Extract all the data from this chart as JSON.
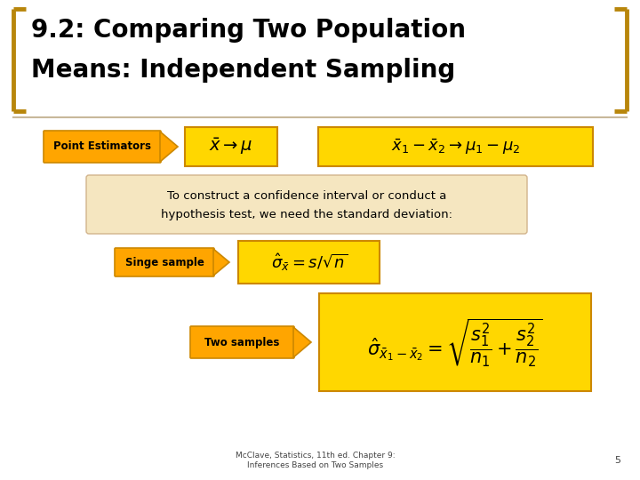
{
  "title_line1": "9.2: Comparing Two Population",
  "title_line2": "Means: Independent Sampling",
  "title_fontsize": 20,
  "bg_color": "#ffffff",
  "title_color": "#000000",
  "arrow_color": "#FFA500",
  "arrow_edge_color": "#CC8800",
  "yellow_box_color": "#FFD700",
  "yellow_box_edge": "#CC8800",
  "tan_box_color": "#F5E6C0",
  "tan_box_edge": "#D2B48C",
  "bracket_color": "#B8860B",
  "label_box_color": "#FFA500",
  "label_box_edge": "#CC8800",
  "footer_text": "McClave, Statistics, 11th ed. Chapter 9:\nInferences Based on Two Samples",
  "footer_page": "5",
  "divider_color": "#C8B89A"
}
